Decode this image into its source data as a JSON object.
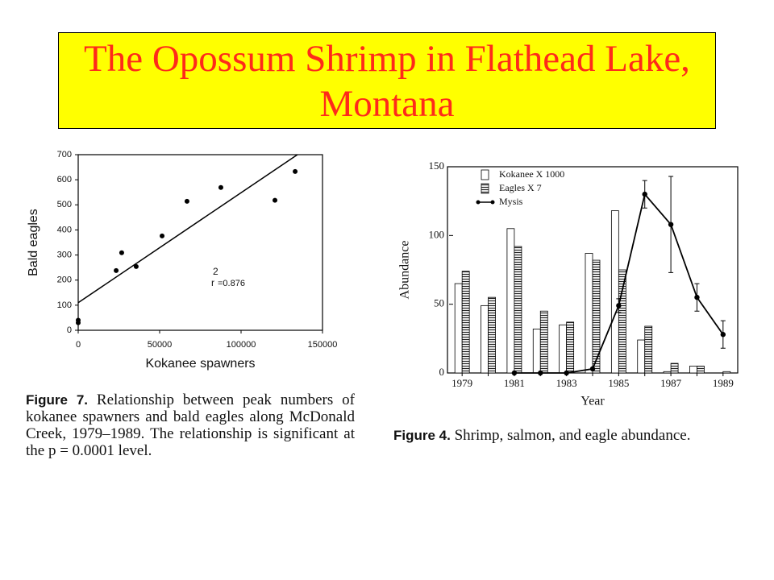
{
  "title": "The Opossum Shrimp in Flathead Lake, Montana",
  "chart_data": [
    {
      "type": "scatter",
      "x_label": "Kokanee spawners",
      "y_label": "Bald eagles",
      "x": [
        0,
        0,
        23300,
        26700,
        35600,
        51500,
        66800,
        87600,
        120800,
        133200
      ],
      "values": [
        40,
        30,
        238,
        309,
        254,
        376,
        514,
        569,
        518,
        633
      ],
      "color": "#000000",
      "fit": {
        "x": [
          0,
          134600
        ],
        "values": [
          110,
          700
        ]
      },
      "annotation": {
        "base": "r",
        "sup": "2",
        "text": "=0.876"
      },
      "xlim": [
        0,
        150000
      ],
      "xticks": [
        0,
        50000,
        100000,
        150000
      ],
      "ylim": [
        0,
        700
      ],
      "yticks": [
        0,
        100,
        200,
        300,
        400,
        500,
        600,
        700
      ],
      "caption_label": "Figure 7.",
      "caption": "Relationship between peak numbers of kokanee spawners and bald eagles along McDonald Creek, 1979–1989. The relationship is significant at the p = 0.0001 level."
    },
    {
      "type": "bar",
      "x_label": "Year",
      "y_label": "Abundance",
      "categories": [
        "1979",
        null,
        "1981",
        null,
        "1983",
        null,
        "1985",
        null,
        "1987",
        null,
        "1989"
      ],
      "series": [
        {
          "name": "Kokanee X 1000",
          "style": "bar",
          "color": "#ffffff",
          "values": [
            65,
            49,
            105,
            32,
            35,
            87,
            118,
            24,
            1,
            5,
            0
          ]
        },
        {
          "name": "Eagles X 7",
          "style": "bar",
          "color": "#ffffff",
          "pattern": "hatched",
          "values": [
            74,
            55,
            92,
            45,
            37,
            82,
            75,
            34,
            7,
            5,
            1
          ]
        },
        {
          "name": "Mysis",
          "style": "line",
          "color": "#000000",
          "values": [
            null,
            null,
            0,
            0,
            0,
            3,
            49,
            130,
            108,
            55,
            28
          ],
          "errors": [
            null,
            null,
            null,
            null,
            null,
            null,
            5,
            10,
            35,
            10,
            10
          ]
        }
      ],
      "ylim": [
        0,
        150
      ],
      "yticks": [
        0,
        50,
        100,
        150
      ],
      "legend": "upper-left",
      "caption_label": "Figure 4.",
      "caption": "Shrimp, salmon, and eagle abundance."
    }
  ]
}
